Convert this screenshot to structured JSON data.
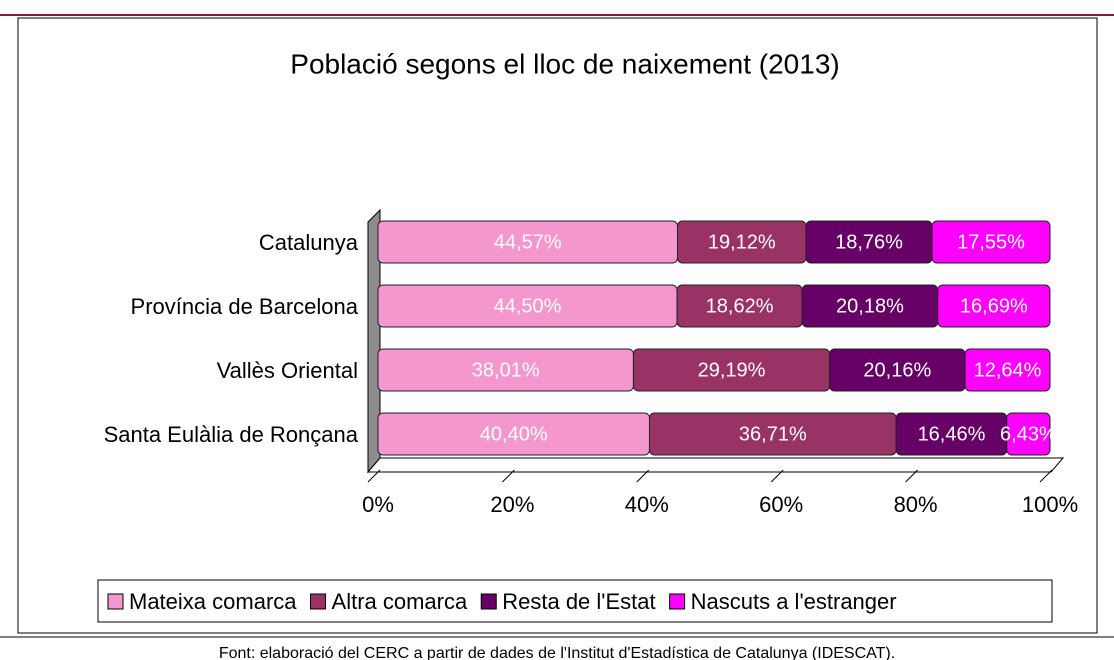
{
  "chart_data": {
    "type": "stacked_barh",
    "title": "Població segons el lloc de naixement (2013)",
    "source": "Font: elaboració del CERC a partir de dades de l'Institut d'Estadística de Catalunya (IDESCAT).",
    "categories": [
      "Catalunya",
      "Província de Barcelona",
      "Vallès Oriental",
      "Santa Eulàlia de Ronçana"
    ],
    "series": [
      {
        "name": "Mateixa comarca",
        "color": "#f497cf",
        "values": [
          44.57,
          44.5,
          38.01,
          40.4
        ],
        "value_labels": [
          "44,57%",
          "44,50%",
          "38,01%",
          "40,40%"
        ]
      },
      {
        "name": "Altra comarca",
        "color": "#993366",
        "values": [
          19.12,
          18.62,
          29.19,
          36.71
        ],
        "value_labels": [
          "19,12%",
          "18,62%",
          "29,19%",
          "36,71%"
        ]
      },
      {
        "name": "Resta de l'Estat",
        "color": "#660066",
        "values": [
          18.76,
          20.18,
          20.16,
          16.46
        ],
        "value_labels": [
          "18,76%",
          "20,18%",
          "20,16%",
          "16,46%"
        ]
      },
      {
        "name": "Nascuts a l'estranger",
        "color": "#ff00ff",
        "values": [
          17.55,
          16.69,
          12.64,
          6.43
        ],
        "value_labels": [
          "17,55%",
          "16,69%",
          "12,64%",
          "6,43%"
        ]
      }
    ],
    "xlim": [
      0,
      100
    ],
    "xticks": [
      {
        "value": 0,
        "label": "0%"
      },
      {
        "value": 20,
        "label": "20%"
      },
      {
        "value": 40,
        "label": "40%"
      },
      {
        "value": 60,
        "label": "60%"
      },
      {
        "value": 80,
        "label": "80%"
      },
      {
        "value": 100,
        "label": "100%"
      }
    ],
    "legend": "bottom"
  }
}
